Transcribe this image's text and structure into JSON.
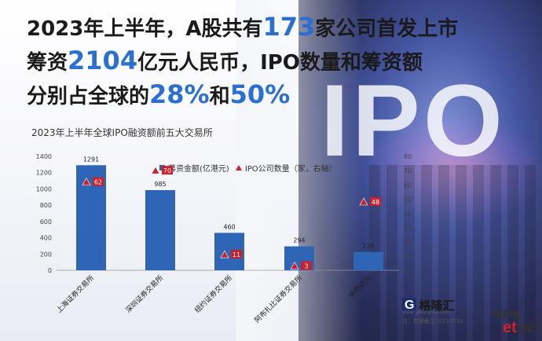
{
  "headline": {
    "line1_a": "2023年上半年，A股共有",
    "line1_num": "173",
    "line1_b": "家公司首发上市",
    "line2_a": "筹资",
    "line2_num": "2104",
    "line2_b": "亿元人民币，IPO数量和筹资额",
    "line3_a": "分别占全球的",
    "line3_num1": "28%",
    "line3_mid": "和",
    "line3_num2": "50%"
  },
  "background_text": "IPO",
  "logo": {
    "mark": "G",
    "name": "格隆汇",
    "url": "www.gelonghui.com"
  },
  "source": "注：数据截至2023/6/20",
  "watermarks": {
    "jjt": "经济通",
    "et_a": "et",
    "et_b": "net"
  },
  "colors": {
    "bar": "#2e65b5",
    "marker": "#c8202c",
    "accent": "#2b6fd0"
  },
  "chart_data": {
    "type": "bar",
    "title": "2023年上半年全球IPO融资额前五大交易所",
    "categories": [
      "上海证券交易所",
      "深圳证券交易所",
      "纽约证券交易所",
      "阿布扎比证券交易所",
      "纳斯达克"
    ],
    "series": [
      {
        "name": "募资金额(亿港元)",
        "type": "bar",
        "axis": "left",
        "values": [
          1291,
          985,
          460,
          294,
          226
        ]
      },
      {
        "name": "IPO公司数量（家，右轴）",
        "type": "marker",
        "axis": "right",
        "values": [
          62,
          70,
          11,
          3,
          48
        ]
      }
    ],
    "ylim_left": [
      0,
      1400
    ],
    "yticks_left": [
      0,
      200,
      400,
      600,
      800,
      1000,
      1200,
      1400
    ],
    "ylim_right": [
      0,
      80
    ],
    "yticks_right": [
      0,
      10,
      20,
      30,
      40,
      50,
      60,
      70,
      80
    ],
    "legend_position": "top-right",
    "grid": false
  }
}
